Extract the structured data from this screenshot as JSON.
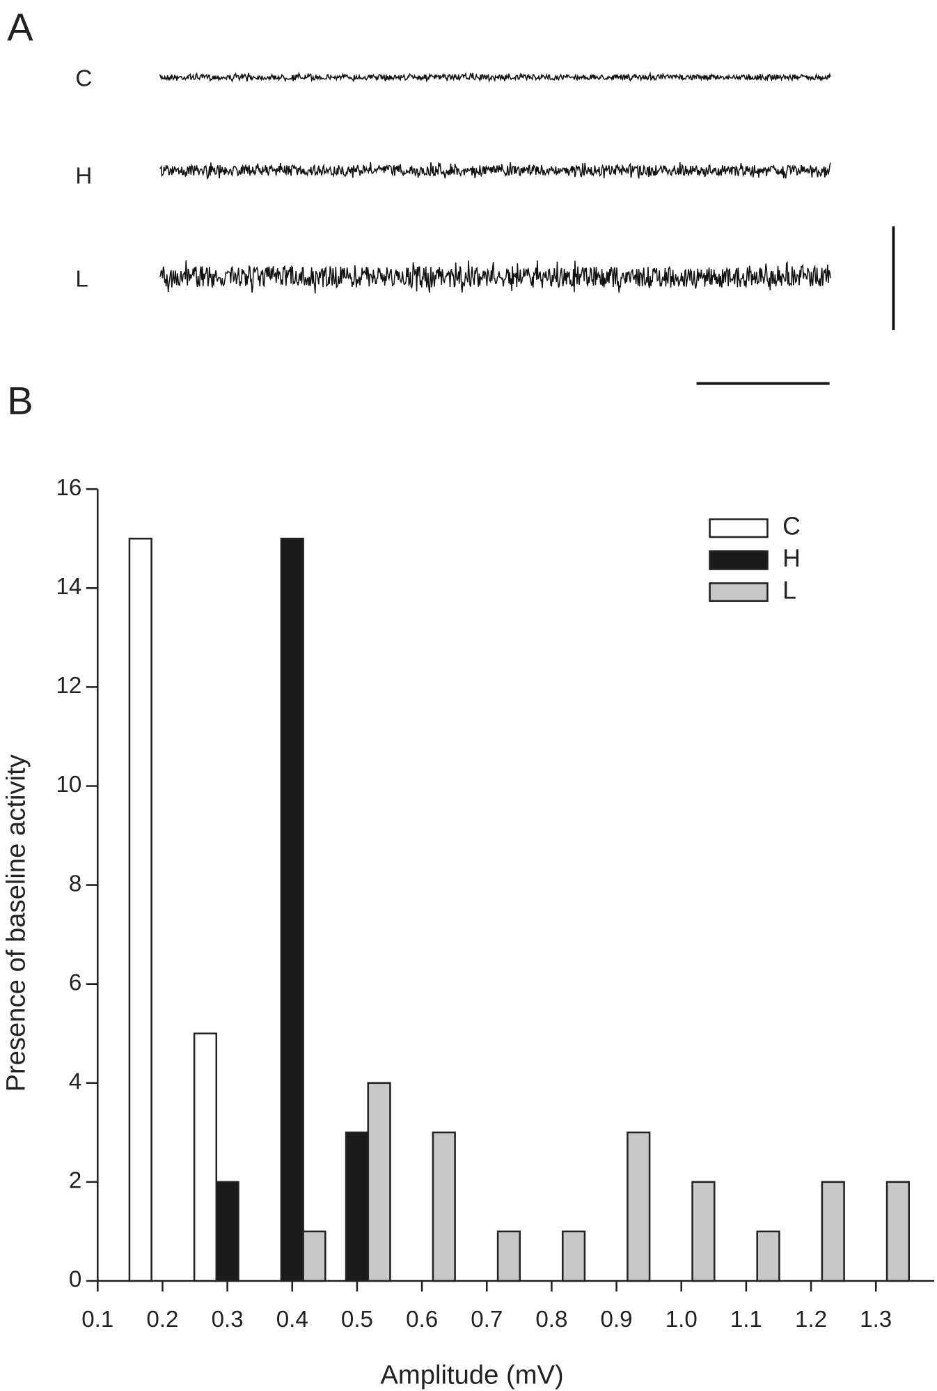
{
  "panel_a": {
    "panel_label": "A",
    "trace_labels": [
      "C",
      "H",
      "L"
    ]
  },
  "chart_data": {
    "type": "bar",
    "panel_label": "B",
    "x_label": "Amplitude (mV)",
    "y_label": "Presence of baseline activity",
    "x": [
      0.2,
      0.3,
      0.4,
      0.5,
      0.6,
      0.7,
      0.8,
      0.9,
      1.0,
      1.1,
      1.2,
      1.3
    ],
    "series": [
      {
        "name": "C",
        "color": "#ffffff",
        "values": [
          15,
          5,
          null,
          null,
          null,
          null,
          null,
          null,
          null,
          null,
          null,
          null
        ]
      },
      {
        "name": "H",
        "color": "#1a1a1a",
        "values": [
          null,
          2,
          15,
          3,
          null,
          null,
          null,
          null,
          null,
          null,
          null,
          null
        ]
      },
      {
        "name": "L",
        "color": "#c8c8c8",
        "values": [
          null,
          null,
          1,
          4,
          3,
          1,
          1,
          3,
          2,
          1,
          2,
          2
        ]
      }
    ],
    "xlim": [
      0.1,
      1.39
    ],
    "xticks": [
      0.1,
      0.2,
      0.3,
      0.4,
      0.5,
      0.6,
      0.7,
      0.8,
      0.9,
      {
        "value": 1,
        "label": "1.0"
      },
      1.1,
      1.2,
      1.3
    ],
    "ylim": [
      0,
      16
    ],
    "yticks": [
      0,
      2,
      4,
      6,
      8,
      10,
      12,
      14,
      16
    ],
    "grid": false,
    "legend": "upper right"
  }
}
